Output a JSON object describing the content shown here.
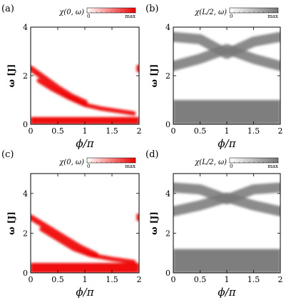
{
  "chart_data": [
    {
      "type": "heatmap",
      "panel": "(a)",
      "colorbar": {
        "title": "χ(0, ω)",
        "min_label": "0",
        "max_label": "max",
        "color": "#ee0000"
      },
      "xlabel": "ϕ/π",
      "ylabel": "ω [J]",
      "xlim": [
        0,
        2
      ],
      "ylim": [
        0,
        4
      ],
      "xticks": [
        "0",
        "0.5",
        "1",
        "1.5",
        "2"
      ],
      "yticks": [
        "0",
        "2",
        "4"
      ],
      "features": [
        {
          "desc": "upper dispersing band",
          "x": [
            0,
            0.25,
            0.5,
            0.75,
            1.0
          ],
          "y": [
            2.3,
            1.9,
            1.5,
            1.15,
            0.9
          ]
        },
        {
          "desc": "second dispersing band",
          "x": [
            0.15,
            0.4,
            0.7,
            1.0,
            1.3,
            1.6,
            1.9
          ],
          "y": [
            1.8,
            1.45,
            1.1,
            0.8,
            0.65,
            0.55,
            0.45
          ]
        },
        {
          "desc": "low energy continuum",
          "x": [
            0,
            2
          ],
          "y": [
            0,
            0.3
          ]
        },
        {
          "desc": "edge feature at phi=2",
          "x": [
            1.95,
            2.0
          ],
          "y": [
            2.3,
            2.3
          ]
        }
      ]
    },
    {
      "type": "heatmap",
      "panel": "(b)",
      "colorbar": {
        "title": "χ(L/2, ω)",
        "min_label": "0",
        "max_label": "max",
        "color": "#777777"
      },
      "xlabel": "ϕ/π",
      "ylabel": "ω [J]",
      "xlim": [
        0,
        2
      ],
      "ylim": [
        0,
        4
      ],
      "xticks": [
        "0",
        "0.5",
        "1",
        "1.5",
        "2"
      ],
      "yticks": [
        "0",
        "2",
        "4"
      ],
      "features": [
        {
          "desc": "upper band",
          "x": [
            0,
            0.5,
            1.0,
            1.5,
            2.0
          ],
          "y": [
            3.6,
            3.5,
            2.9,
            3.4,
            3.6
          ]
        },
        {
          "desc": "middle band",
          "x": [
            0,
            0.5,
            1.0,
            1.5,
            2.0
          ],
          "y": [
            2.4,
            2.7,
            3.1,
            2.7,
            2.4
          ]
        },
        {
          "desc": "low energy continuum",
          "x": [
            0,
            2
          ],
          "y": [
            0,
            1.0
          ]
        }
      ]
    },
    {
      "type": "heatmap",
      "panel": "(c)",
      "colorbar": {
        "title": "χ(0, ω)",
        "min_label": "0",
        "max_label": "max",
        "color": "#ee0000"
      },
      "xlabel": "ϕ/π",
      "ylabel": "ω [J]",
      "xlim": [
        0,
        2
      ],
      "ylim": [
        0,
        5
      ],
      "xticks": [
        "0",
        "0.5",
        "1",
        "1.5",
        "2"
      ],
      "yticks": [
        "0",
        "2",
        "4"
      ],
      "features": [
        {
          "desc": "upper dispersing band",
          "x": [
            0,
            0.3,
            0.6,
            0.9,
            1.2
          ],
          "y": [
            2.8,
            2.3,
            1.8,
            1.3,
            0.9
          ]
        },
        {
          "desc": "second dispersing band",
          "x": [
            0.2,
            0.5,
            0.8,
            1.1,
            1.5,
            1.9
          ],
          "y": [
            2.2,
            1.7,
            1.2,
            0.9,
            0.7,
            0.55
          ]
        },
        {
          "desc": "low energy continuum",
          "x": [
            0,
            2
          ],
          "y": [
            0,
            0.5
          ]
        },
        {
          "desc": "edge feature at phi=2",
          "x": [
            1.95,
            2.0
          ],
          "y": [
            2.8,
            2.8
          ]
        }
      ]
    },
    {
      "type": "heatmap",
      "panel": "(d)",
      "colorbar": {
        "title": "χ(L/2, ω)",
        "min_label": "0",
        "max_label": "max",
        "color": "#777777"
      },
      "xlabel": "ϕ/π",
      "ylabel": "ω [J]",
      "xlim": [
        0,
        2
      ],
      "ylim": [
        0,
        5
      ],
      "xticks": [
        "0",
        "0.5",
        "1",
        "1.5",
        "2"
      ],
      "yticks": [
        "0",
        "2",
        "4"
      ],
      "features": [
        {
          "desc": "upper band",
          "x": [
            0,
            0.5,
            1.0,
            1.5,
            2.0
          ],
          "y": [
            4.3,
            4.2,
            3.7,
            4.2,
            4.3
          ]
        },
        {
          "desc": "middle band",
          "x": [
            0,
            0.5,
            1.0,
            1.5,
            2.0
          ],
          "y": [
            3.1,
            3.4,
            3.8,
            3.4,
            3.1
          ]
        },
        {
          "desc": "low energy continuum",
          "x": [
            0,
            2
          ],
          "y": [
            0,
            1.2
          ]
        }
      ]
    }
  ]
}
